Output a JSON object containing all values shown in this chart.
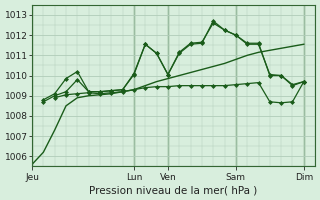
{
  "background_color": "#d8eedd",
  "grid_color": "#b0ccb8",
  "line_color": "#1a5c1a",
  "title": "Pression niveau de la mer( hPa )",
  "ylim": [
    1005.5,
    1013.5
  ],
  "yticks": [
    1006,
    1007,
    1008,
    1009,
    1010,
    1011,
    1012,
    1013
  ],
  "day_labels": [
    "Jeu",
    "",
    "Lun",
    "Ven",
    "",
    "Sam",
    "",
    "Dim"
  ],
  "vline_positions": [
    0,
    9,
    12,
    18,
    24
  ],
  "xlim": [
    0,
    25
  ],
  "series": [
    {
      "x": [
        0,
        1,
        2,
        3,
        4,
        5,
        6,
        7,
        8,
        9,
        10,
        11,
        12,
        13,
        14,
        15,
        16,
        17,
        18,
        19,
        20,
        21,
        22,
        23,
        24
      ],
      "y": [
        1005.6,
        1006.2,
        1007.3,
        1008.5,
        1008.9,
        1009.0,
        1009.05,
        1009.1,
        1009.2,
        1009.3,
        1009.5,
        1009.7,
        1009.85,
        1010.0,
        1010.15,
        1010.3,
        1010.45,
        1010.6,
        1010.8,
        1011.0,
        1011.15,
        1011.25,
        1011.35,
        1011.45,
        1011.55
      ],
      "marker": null,
      "linestyle": "-",
      "linewidth": 1.0
    },
    {
      "x": [
        2,
        3,
        4,
        5,
        6,
        7,
        8,
        9,
        10,
        11,
        12,
        13,
        14,
        15,
        16,
        17,
        18,
        19,
        20,
        21,
        22,
        23,
        24
      ],
      "y": [
        1008.9,
        1009.05,
        1009.1,
        1009.15,
        1009.1,
        1009.15,
        1009.2,
        1009.3,
        1009.4,
        1009.45,
        1009.45,
        1009.5,
        1009.5,
        1009.5,
        1009.5,
        1009.5,
        1009.55,
        1009.6,
        1009.65,
        1008.7,
        1008.65,
        1008.7,
        1009.7
      ],
      "marker": "D",
      "linestyle": "-",
      "linewidth": 0.9
    },
    {
      "x": [
        1,
        2,
        3,
        4,
        5,
        6,
        7,
        8,
        9,
        10,
        11,
        12,
        13,
        14,
        15,
        16,
        17,
        18,
        19,
        20,
        21,
        22,
        23,
        24
      ],
      "y": [
        1008.7,
        1009.0,
        1009.2,
        1009.8,
        1009.2,
        1009.2,
        1009.25,
        1009.3,
        1010.1,
        1011.55,
        1011.1,
        1010.05,
        1011.15,
        1011.6,
        1011.65,
        1012.6,
        1012.25,
        1012.0,
        1011.55,
        1011.55,
        1010.05,
        1010.0,
        1009.55,
        1009.7
      ],
      "marker": "D",
      "linestyle": "-",
      "linewidth": 0.9
    },
    {
      "x": [
        1,
        2,
        3,
        4,
        5,
        6,
        7,
        8,
        9,
        10,
        11,
        12,
        13,
        14,
        15,
        16,
        17,
        18,
        19,
        20,
        21,
        22,
        23,
        24
      ],
      "y": [
        1008.8,
        1009.1,
        1009.85,
        1010.2,
        1009.2,
        1009.2,
        1009.25,
        1009.3,
        1010.05,
        1011.55,
        1011.1,
        1010.05,
        1011.1,
        1011.55,
        1011.6,
        1012.7,
        1012.25,
        1012.0,
        1011.6,
        1011.6,
        1010.0,
        1010.0,
        1009.5,
        1009.7
      ],
      "marker": "D",
      "linestyle": "-",
      "linewidth": 0.9
    }
  ]
}
